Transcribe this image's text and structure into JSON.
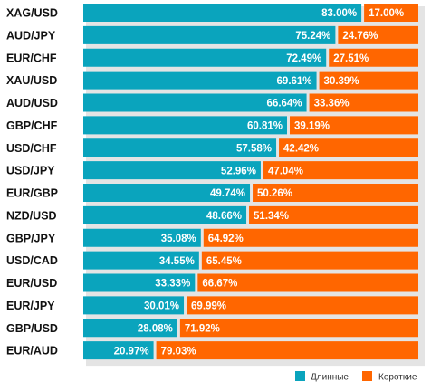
{
  "chart_data": {
    "type": "bar",
    "orientation": "horizontal",
    "stacked": true,
    "categories": [
      "XAG/USD",
      "AUD/JPY",
      "EUR/CHF",
      "XAU/USD",
      "AUD/USD",
      "GBP/CHF",
      "USD/CHF",
      "USD/JPY",
      "EUR/GBP",
      "NZD/USD",
      "GBP/JPY",
      "USD/CAD",
      "EUR/USD",
      "EUR/JPY",
      "GBP/USD",
      "EUR/AUD"
    ],
    "series": [
      {
        "name": "Длинные",
        "color": "#0aa4bd",
        "values": [
          83.0,
          75.24,
          72.49,
          69.61,
          66.64,
          60.81,
          57.58,
          52.96,
          49.74,
          48.66,
          35.08,
          34.55,
          33.33,
          30.01,
          28.08,
          20.97
        ],
        "labels": [
          "83.00%",
          "75.24%",
          "72.49%",
          "69.61%",
          "66.64%",
          "60.81%",
          "57.58%",
          "52.96%",
          "49.74%",
          "48.66%",
          "35.08%",
          "34.55%",
          "33.33%",
          "30.01%",
          "28.08%",
          "20.97%"
        ]
      },
      {
        "name": "Короткие",
        "color": "#ff6600",
        "values": [
          17.0,
          24.76,
          27.51,
          30.39,
          33.36,
          39.19,
          42.42,
          47.04,
          50.26,
          51.34,
          64.92,
          65.45,
          66.67,
          69.99,
          71.92,
          79.03
        ],
        "labels": [
          "17.00%",
          "24.76%",
          "27.51%",
          "30.39%",
          "33.36%",
          "39.19%",
          "42.42%",
          "47.04%",
          "50.26%",
          "51.34%",
          "64.92%",
          "65.45%",
          "66.67%",
          "69.99%",
          "71.92%",
          "79.03%"
        ]
      }
    ],
    "xlim": [
      0,
      100
    ],
    "grid": false,
    "legend_position": "bottom-right",
    "title": "",
    "xlabel": "",
    "ylabel": ""
  }
}
